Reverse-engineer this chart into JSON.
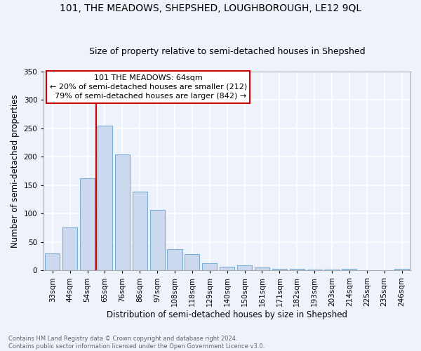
{
  "title": "101, THE MEADOWS, SHEPSHED, LOUGHBOROUGH, LE12 9QL",
  "subtitle": "Size of property relative to semi-detached houses in Shepshed",
  "xlabel": "Distribution of semi-detached houses by size in Shepshed",
  "ylabel": "Number of semi-detached properties",
  "bin_labels": [
    "33sqm",
    "44sqm",
    "54sqm",
    "65sqm",
    "76sqm",
    "86sqm",
    "97sqm",
    "108sqm",
    "118sqm",
    "129sqm",
    "140sqm",
    "150sqm",
    "161sqm",
    "171sqm",
    "182sqm",
    "193sqm",
    "203sqm",
    "214sqm",
    "225sqm",
    "235sqm",
    "246sqm"
  ],
  "bin_values": [
    30,
    75,
    162,
    255,
    204,
    138,
    106,
    37,
    29,
    13,
    6,
    9,
    5,
    3,
    3,
    2,
    1,
    3,
    0,
    0,
    3
  ],
  "bar_color": "#ccd9ef",
  "bar_edge_color": "#7aaed6",
  "background_color": "#eef2fb",
  "grid_color": "#ffffff",
  "property_label": "101 THE MEADOWS: 64sqm",
  "pct_smaller": 20,
  "pct_smaller_count": 212,
  "pct_larger": 79,
  "pct_larger_count": 842,
  "vline_x_index": 3,
  "vline_color": "#cc0000",
  "annotation_box_color": "#ffffff",
  "annotation_box_edge": "#cc0000",
  "footer_text": "Contains HM Land Registry data © Crown copyright and database right 2024.\nContains public sector information licensed under the Open Government Licence v3.0.",
  "ylim": [
    0,
    350
  ],
  "title_fontsize": 10,
  "subtitle_fontsize": 9,
  "xlabel_fontsize": 8.5,
  "ylabel_fontsize": 8.5,
  "tick_fontsize": 7.5,
  "annotation_fontsize": 8,
  "footer_fontsize": 6
}
